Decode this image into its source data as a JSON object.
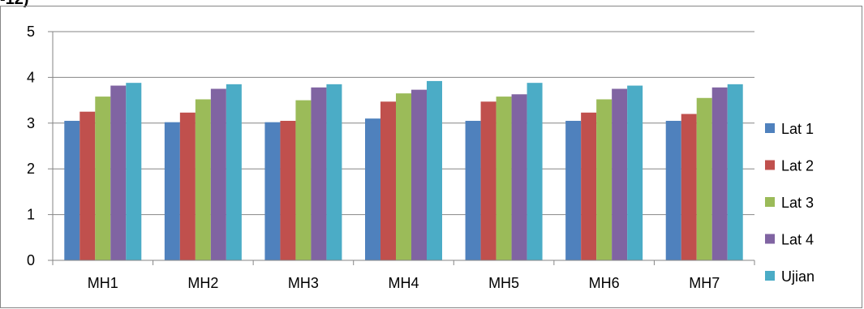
{
  "header_fragment": "-12)",
  "chart_data": {
    "type": "bar",
    "categories": [
      "MH1",
      "MH2",
      "MH3",
      "MH4",
      "MH5",
      "MH6",
      "MH7"
    ],
    "series": [
      {
        "name": "Lat 1",
        "color": "#4F81BD",
        "values": [
          3.05,
          3.02,
          3.02,
          3.1,
          3.05,
          3.05,
          3.05
        ]
      },
      {
        "name": "Lat 2",
        "color": "#C0504D",
        "values": [
          3.25,
          3.23,
          3.05,
          3.47,
          3.47,
          3.23,
          3.2
        ]
      },
      {
        "name": "Lat 3",
        "color": "#9BBB59",
        "values": [
          3.58,
          3.52,
          3.5,
          3.65,
          3.58,
          3.52,
          3.55
        ]
      },
      {
        "name": "Lat 4",
        "color": "#8064A2",
        "values": [
          3.82,
          3.75,
          3.78,
          3.73,
          3.63,
          3.75,
          3.78
        ]
      },
      {
        "name": "Ujian",
        "color": "#4BACC6",
        "values": [
          3.88,
          3.85,
          3.85,
          3.92,
          3.88,
          3.82,
          3.85
        ]
      }
    ],
    "yticks": [
      "0",
      "1",
      "2",
      "3",
      "4",
      "5"
    ],
    "ylim": [
      0,
      5
    ],
    "grid": true,
    "legend_position": "right"
  }
}
